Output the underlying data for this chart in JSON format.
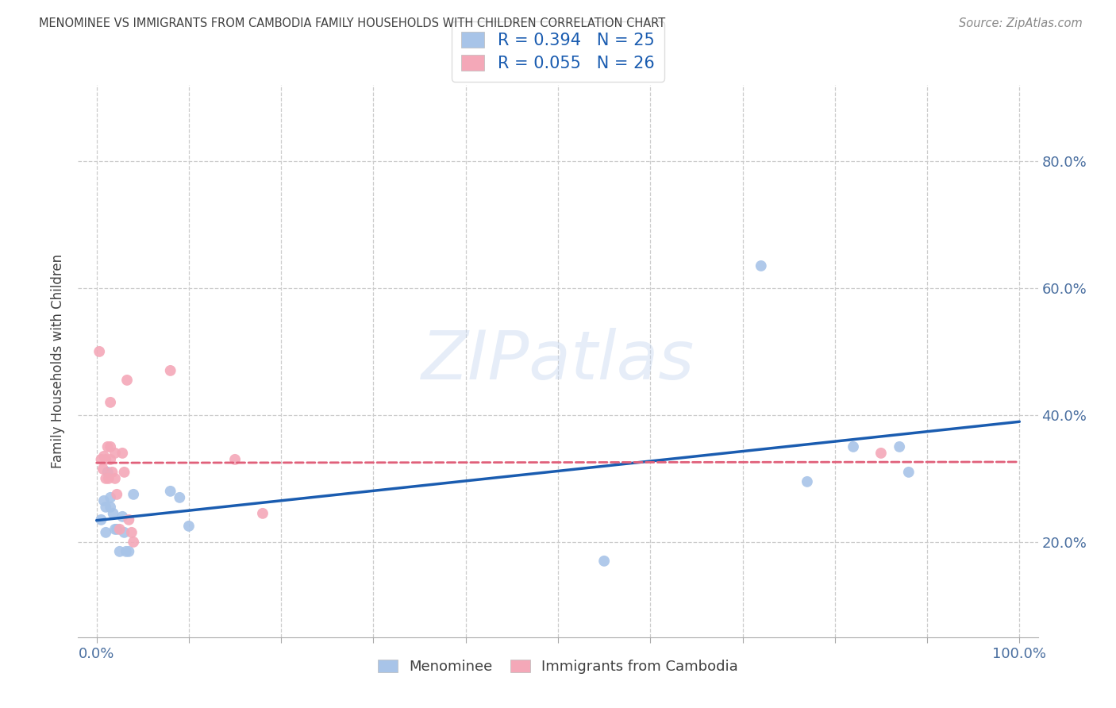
{
  "title": "MENOMINEE VS IMMIGRANTS FROM CAMBODIA FAMILY HOUSEHOLDS WITH CHILDREN CORRELATION CHART",
  "source": "Source: ZipAtlas.com",
  "ylabel": "Family Households with Children",
  "watermark": "ZIPatlas",
  "xlim": [
    -0.02,
    1.02
  ],
  "ylim": [
    0.05,
    0.92
  ],
  "ytick_vals": [
    0.2,
    0.4,
    0.6,
    0.8
  ],
  "ytick_labels": [
    "20.0%",
    "40.0%",
    "60.0%",
    "80.0%"
  ],
  "xtick_vals": [
    0.0,
    0.1,
    0.2,
    0.3,
    0.4,
    0.5,
    0.6,
    0.7,
    0.8,
    0.9,
    1.0
  ],
  "xtick_labels_show": {
    "0.0": "0.0%",
    "1.0": "100.0%"
  },
  "menominee_color": "#a8c4e8",
  "cambodia_color": "#f4a8b8",
  "menominee_line_color": "#1a5cb0",
  "cambodia_line_color": "#e0607a",
  "R_menominee": 0.394,
  "N_menominee": 25,
  "R_cambodia": 0.055,
  "N_cambodia": 26,
  "menominee_x": [
    0.005,
    0.008,
    0.01,
    0.01,
    0.012,
    0.015,
    0.015,
    0.018,
    0.02,
    0.022,
    0.025,
    0.028,
    0.03,
    0.032,
    0.035,
    0.04,
    0.08,
    0.09,
    0.1,
    0.55,
    0.72,
    0.77,
    0.82,
    0.87,
    0.88
  ],
  "menominee_y": [
    0.235,
    0.265,
    0.255,
    0.215,
    0.31,
    0.27,
    0.255,
    0.245,
    0.22,
    0.22,
    0.185,
    0.24,
    0.215,
    0.185,
    0.185,
    0.275,
    0.28,
    0.27,
    0.225,
    0.17,
    0.635,
    0.295,
    0.35,
    0.35,
    0.31
  ],
  "cambodia_x": [
    0.003,
    0.005,
    0.007,
    0.008,
    0.01,
    0.01,
    0.012,
    0.013,
    0.015,
    0.015,
    0.015,
    0.017,
    0.02,
    0.02,
    0.022,
    0.025,
    0.028,
    0.03,
    0.033,
    0.035,
    0.038,
    0.04,
    0.08,
    0.15,
    0.18,
    0.85
  ],
  "cambodia_y": [
    0.5,
    0.33,
    0.315,
    0.335,
    0.33,
    0.3,
    0.35,
    0.3,
    0.42,
    0.35,
    0.33,
    0.31,
    0.34,
    0.3,
    0.275,
    0.22,
    0.34,
    0.31,
    0.455,
    0.235,
    0.215,
    0.2,
    0.47,
    0.33,
    0.245,
    0.34
  ],
  "background_color": "#ffffff",
  "grid_color": "#cccccc",
  "title_color": "#404040",
  "axis_label_color": "#4a6fa0",
  "marker_size": 100,
  "legend_text_color": "#1a5cb0"
}
